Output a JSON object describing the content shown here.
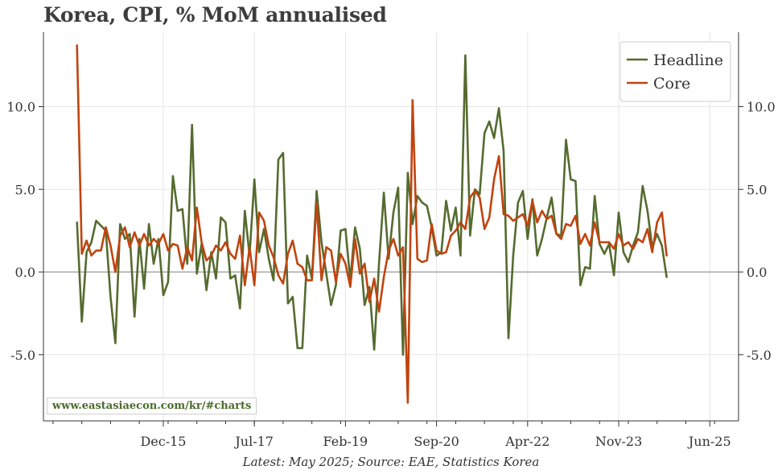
{
  "title": "Korea, CPI, % MoM annualised",
  "caption": "Latest: May 2025; Source: EAE, Statistics Korea",
  "watermark": "www.eastasiaecon.com/kr/#charts",
  "colors": {
    "headline": "#556b2f",
    "core": "#c0440f",
    "grid": "#e6e6e6",
    "zero": "#999999"
  },
  "chart_data": {
    "type": "line",
    "x_start": "2014-06",
    "x_end": "2025-05",
    "x_step": "month",
    "xlim": [
      "2013-11",
      "2025-12"
    ],
    "ylim": [
      -9,
      14.5
    ],
    "grid": true,
    "legend_position": "top-right",
    "x_tick_labels": [
      {
        "label": "Dec-15",
        "date": "2015-12"
      },
      {
        "label": "Jul-17",
        "date": "2017-07"
      },
      {
        "label": "Feb-19",
        "date": "2019-02"
      },
      {
        "label": "Sep-20",
        "date": "2020-09"
      },
      {
        "label": "Apr-22",
        "date": "2022-04"
      },
      {
        "label": "Nov-23",
        "date": "2023-11"
      },
      {
        "label": "Jun-25",
        "date": "2025-06"
      }
    ],
    "y_ticks": [
      {
        "value": 10,
        "label": "10.0"
      },
      {
        "value": 5,
        "label": "5.0"
      },
      {
        "value": 0,
        "label": "0.0"
      },
      {
        "value": -5,
        "label": "-5.0"
      }
    ],
    "series": [
      {
        "name": "Headline",
        "values": [
          3.0,
          -3.0,
          1.2,
          1.8,
          3.1,
          2.8,
          2.5,
          -1.5,
          -4.3,
          2.9,
          2.0,
          2.3,
          -2.7,
          2.0,
          -1.0,
          2.9,
          0.5,
          2.0,
          -1.4,
          -0.6,
          5.8,
          3.7,
          3.8,
          0.5,
          8.9,
          -0.1,
          1.7,
          -1.1,
          1.2,
          -0.4,
          3.3,
          3.0,
          -0.4,
          -0.2,
          -2.2,
          3.7,
          1.0,
          5.6,
          1.2,
          2.6,
          0.8,
          -0.5,
          6.8,
          7.2,
          -1.9,
          -1.5,
          -4.6,
          -4.6,
          1.0,
          -0.4,
          4.9,
          1.8,
          -0.1,
          -2.0,
          -0.8,
          2.5,
          2.6,
          -0.5,
          2.7,
          1.4,
          -2.0,
          -0.9,
          -4.7,
          0.5,
          4.8,
          0.8,
          3.6,
          5.1,
          -5.0,
          6.0,
          2.9,
          4.6,
          4.2,
          4.0,
          2.7,
          1.0,
          1.2,
          4.3,
          2.5,
          3.9,
          1.0,
          13.1,
          2.2,
          5.0,
          4.7,
          8.4,
          9.1,
          8.1,
          9.9,
          7.3,
          -4.0,
          1.0,
          4.2,
          4.9,
          2.0,
          4.4,
          1.0,
          2.0,
          3.3,
          4.5,
          2.3,
          2.2,
          8.0,
          5.6,
          5.5,
          -0.8,
          0.3,
          0.2,
          4.6,
          1.7,
          1.1,
          1.7,
          -0.2,
          3.6,
          1.2,
          0.6,
          1.6,
          2.4,
          5.2,
          3.7,
          1.5,
          2.3,
          1.6,
          -0.3
        ]
      },
      {
        "name": "Core",
        "values": [
          13.7,
          1.1,
          1.9,
          1.0,
          1.3,
          1.3,
          2.7,
          1.6,
          0.0,
          2.2,
          2.7,
          1.5,
          2.4,
          1.6,
          2.3,
          1.6,
          2.0,
          1.7,
          2.3,
          1.3,
          1.7,
          1.6,
          0.2,
          1.5,
          0.7,
          3.9,
          1.8,
          0.7,
          1.0,
          1.6,
          1.3,
          1.8,
          1.1,
          0.8,
          2.2,
          -0.8,
          1.5,
          -0.8,
          3.6,
          3.1,
          1.6,
          0.9,
          -0.2,
          -0.7,
          1.1,
          1.9,
          0.5,
          0.3,
          -0.5,
          -0.5,
          4.2,
          -0.5,
          1.5,
          1.3,
          -0.6,
          1.1,
          0.5,
          -0.9,
          2.0,
          -0.1,
          0.5,
          -1.8,
          -0.4,
          -2.4,
          -0.3,
          1.3,
          2.0,
          1.0,
          1.5,
          -7.9,
          10.4,
          0.8,
          0.6,
          0.7,
          2.9,
          1.3,
          1.1,
          1.2,
          2.2,
          2.5,
          3.0,
          2.6,
          4.5,
          4.9,
          4.5,
          2.6,
          3.3,
          5.6,
          7.0,
          3.5,
          3.4,
          3.1,
          3.3,
          3.5,
          2.8,
          4.3,
          3.0,
          3.7,
          3.2,
          3.4,
          2.3,
          2.0,
          2.9,
          2.8,
          3.4,
          1.7,
          2.3,
          1.6,
          3.0,
          1.8,
          1.8,
          1.8,
          1.4,
          2.3,
          1.6,
          1.8,
          1.4,
          2.0,
          1.8,
          2.6,
          1.2,
          3.0,
          3.6,
          1.0
        ]
      }
    ]
  }
}
